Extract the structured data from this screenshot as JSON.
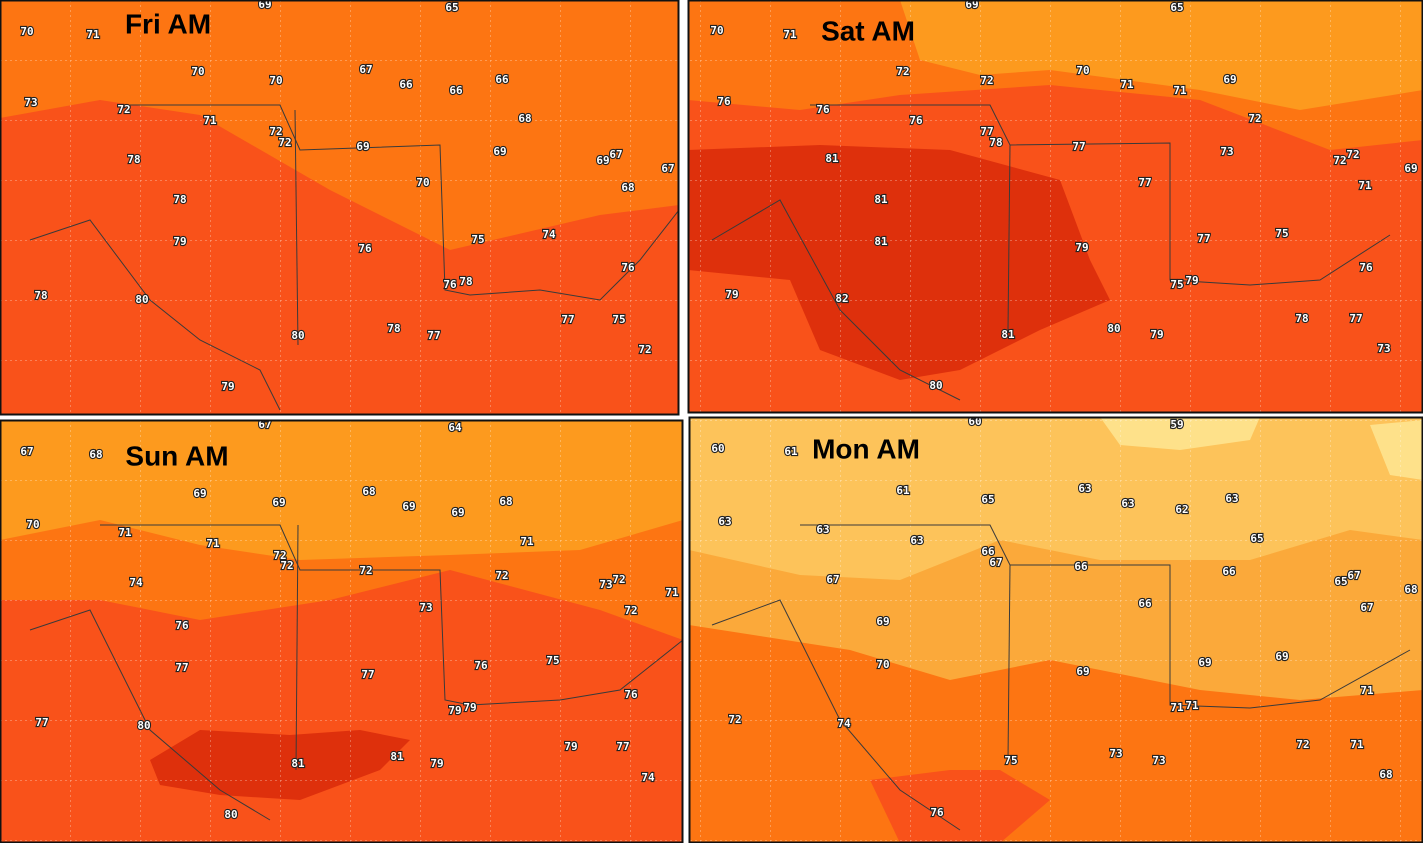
{
  "panels": [
    {
      "title": "Fri AM",
      "labels": [
        69,
        65,
        70,
        71,
        70,
        70,
        67,
        66,
        66,
        66,
        73,
        72,
        71,
        68,
        72,
        72,
        69,
        69,
        69,
        67,
        67,
        78,
        70,
        68,
        78,
        79,
        75,
        74,
        76,
        76,
        76,
        78,
        78,
        80,
        77,
        75,
        78,
        80,
        77,
        72,
        79
      ]
    },
    {
      "title": "Sat AM",
      "labels": [
        69,
        65,
        70,
        71,
        72,
        72,
        70,
        71,
        71,
        69,
        76,
        76,
        76,
        77,
        78,
        72,
        77,
        73,
        72,
        72,
        69,
        81,
        77,
        71,
        81,
        81,
        79,
        77,
        75,
        76,
        75,
        79,
        79,
        82,
        78,
        77,
        80,
        81,
        79,
        73,
        80
      ]
    },
    {
      "title": "Sun AM",
      "labels": [
        67,
        64,
        67,
        68,
        69,
        69,
        68,
        69,
        69,
        68,
        70,
        71,
        71,
        72,
        72,
        72,
        71,
        72,
        73,
        72,
        71,
        74,
        73,
        72,
        76,
        77,
        77,
        76,
        75,
        76,
        79,
        79,
        77,
        80,
        79,
        77,
        81,
        81,
        79,
        74,
        80
      ]
    },
    {
      "title": "Mon AM",
      "labels": [
        60,
        59,
        60,
        61,
        61,
        65,
        63,
        63,
        62,
        63,
        63,
        63,
        63,
        66,
        67,
        66,
        65,
        66,
        66,
        65,
        67,
        68,
        67,
        67,
        69,
        70,
        69,
        69,
        69,
        71,
        71,
        71,
        72,
        74,
        72,
        71,
        73,
        75,
        73,
        68,
        76
      ]
    }
  ]
}
